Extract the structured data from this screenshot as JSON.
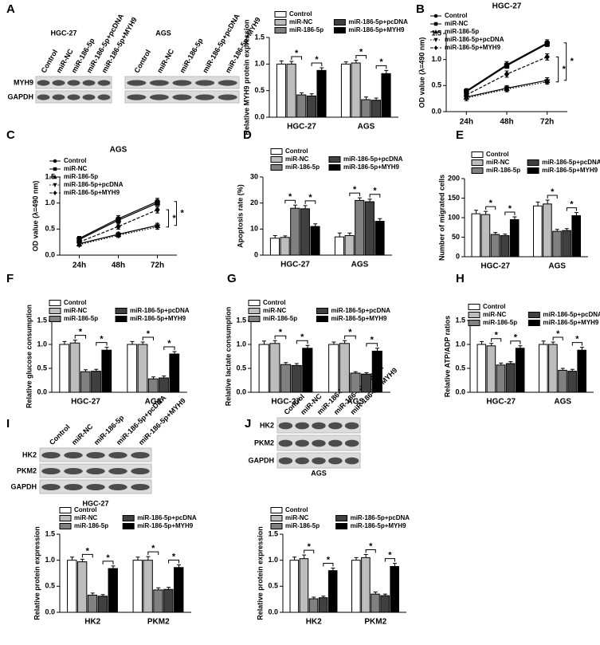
{
  "panel_labels": [
    "A",
    "B",
    "C",
    "D",
    "E",
    "F",
    "G",
    "H",
    "I",
    "J"
  ],
  "blots": [
    {
      "title": "HGC-27",
      "lanes": [
        "Control",
        "miR-NC",
        "miR-186-5p",
        "miR-186-5p+pcDNA",
        "miR-186-5p+MYH9"
      ],
      "rows": [
        "MYH9",
        "GAPDH"
      ]
    },
    {
      "title": "AGS",
      "lanes": [
        "Control",
        "miR-NC",
        "miR-186-5p",
        "miR-186-5p+pcDNA",
        "miR-186-5p+MYH9"
      ]
    },
    {
      "lanes": [
        "Control",
        "miR-NC",
        "miR-186-5p",
        "miR-186-5p+pcDNA",
        "miR-186-5p+MYH9"
      ],
      "rows": [
        "HK2",
        "PKM2",
        "GAPDH"
      ],
      "caption": "HGC-27"
    },
    {
      "lanes": [
        "Control",
        "miR-NC",
        "miR-186-5p",
        "miR-186-5p+pcDNA",
        "miR-186-5p+MYH9"
      ],
      "rows": [
        "HK2",
        "PKM2",
        "GAPDH"
      ],
      "caption": "AGS"
    }
  ],
  "chart_data": [
    {
      "type": "bar",
      "ylabel": "Relative MYH9 protein expression",
      "categories": [
        "HGC-27",
        "AGS"
      ],
      "significance_label": "*",
      "ylim": [
        0,
        1.5
      ],
      "yticks": [
        {
          "value": 0,
          "label": "0.0"
        },
        0.5,
        {
          "value": 1,
          "label": "1.0"
        },
        1.5
      ],
      "series": [
        {
          "name": "Control",
          "color": "#ffffff",
          "values": [
            1.0,
            1.0
          ],
          "errors": [
            0.06,
            0.04
          ]
        },
        {
          "name": "miR-NC",
          "color": "#bdbdbd",
          "values": [
            1.0,
            1.02
          ],
          "errors": [
            0.05,
            0.05
          ]
        },
        {
          "name": "miR-186-5p",
          "color": "#808080",
          "values": [
            0.42,
            0.33
          ],
          "errors": [
            0.04,
            0.05
          ]
        },
        {
          "name": "miR-186-5p+pcDNA",
          "color": "#404040",
          "values": [
            0.4,
            0.32
          ],
          "errors": [
            0.04,
            0.04
          ]
        },
        {
          "name": "miR-186-5p+MYH9",
          "color": "#000000",
          "values": [
            0.88,
            0.82
          ],
          "errors": [
            0.05,
            0.06
          ]
        }
      ]
    },
    {
      "type": "line",
      "title": "HGC-27",
      "ylabel": "OD value (λ=490 nm)",
      "categories": [
        "24h",
        "48h",
        "72h"
      ],
      "significance_label": "*",
      "ylim": [
        0,
        1.5
      ],
      "yticks": [
        {
          "value": 0,
          "label": "0.0"
        },
        0.5,
        {
          "value": 1,
          "label": "1.0"
        },
        1.5
      ],
      "series": [
        {
          "name": "Control",
          "color": "#000000",
          "marker": "circle",
          "dash": "solid",
          "values": [
            0.4,
            0.9,
            1.32
          ],
          "errors": [
            0.04,
            0.06,
            0.06
          ]
        },
        {
          "name": "miR-NC",
          "color": "#000000",
          "marker": "square",
          "dash": "solid",
          "values": [
            0.38,
            0.88,
            1.3
          ],
          "errors": [
            0.04,
            0.05,
            0.05
          ]
        },
        {
          "name": "miR-186-5p",
          "color": "#000000",
          "marker": "triangle",
          "dash": "solid",
          "values": [
            0.28,
            0.45,
            0.6
          ],
          "errors": [
            0.04,
            0.05,
            0.05
          ]
        },
        {
          "name": "miR-186-5p+pcDNA",
          "color": "#000000",
          "marker": "triangle-down",
          "dash": "dotted",
          "values": [
            0.26,
            0.43,
            0.57
          ],
          "errors": [
            0.05,
            0.05,
            0.04
          ]
        },
        {
          "name": "miR-186-5p+MYH9",
          "color": "#000000",
          "marker": "diamond",
          "dash": "dashed",
          "values": [
            0.32,
            0.72,
            1.05
          ],
          "errors": [
            0.05,
            0.06,
            0.06
          ]
        }
      ]
    },
    {
      "type": "line",
      "title": "AGS",
      "ylabel": "OD value (λ=490 nm)",
      "categories": [
        "24h",
        "48h",
        "72h"
      ],
      "significance_label": "*",
      "ylim": [
        0,
        1.5
      ],
      "yticks": [
        {
          "value": 0,
          "label": "0.0"
        },
        0.5,
        {
          "value": 1,
          "label": "1.0"
        },
        1.5
      ],
      "series": [
        {
          "name": "Control",
          "color": "#000000",
          "marker": "circle",
          "dash": "solid",
          "values": [
            0.32,
            0.7,
            1.03
          ],
          "errors": [
            0.04,
            0.06,
            0.06
          ]
        },
        {
          "name": "miR-NC",
          "color": "#000000",
          "marker": "square",
          "dash": "solid",
          "values": [
            0.3,
            0.67,
            1.0
          ],
          "errors": [
            0.04,
            0.05,
            0.05
          ]
        },
        {
          "name": "miR-186-5p",
          "color": "#000000",
          "marker": "triangle",
          "dash": "solid",
          "values": [
            0.22,
            0.4,
            0.57
          ],
          "errors": [
            0.03,
            0.04,
            0.04
          ]
        },
        {
          "name": "miR-186-5p+pcDNA",
          "color": "#000000",
          "marker": "triangle-down",
          "dash": "dotted",
          "values": [
            0.2,
            0.38,
            0.54
          ],
          "errors": [
            0.03,
            0.04,
            0.04
          ]
        },
        {
          "name": "miR-186-5p+MYH9",
          "color": "#000000",
          "marker": "diamond",
          "dash": "dashed",
          "values": [
            0.25,
            0.55,
            0.87
          ],
          "errors": [
            0.04,
            0.05,
            0.06
          ]
        }
      ]
    },
    {
      "type": "bar",
      "ylabel": "Apoptosis rate (%)",
      "categories": [
        "HGC-27",
        "AGS"
      ],
      "significance_label": "*",
      "ylim": [
        0,
        30
      ],
      "yticks": [
        0,
        10,
        20,
        30
      ],
      "series": [
        {
          "name": "Control",
          "color": "#ffffff",
          "values": [
            6.5,
            7
          ],
          "errors": [
            1,
            1.5
          ]
        },
        {
          "name": "miR-NC",
          "color": "#bdbdbd",
          "values": [
            6.8,
            7.5
          ],
          "errors": [
            0.6,
            1
          ]
        },
        {
          "name": "miR-186-5p",
          "color": "#808080",
          "values": [
            18,
            21
          ],
          "errors": [
            1.2,
            1
          ]
        },
        {
          "name": "miR-186-5p+pcDNA",
          "color": "#404040",
          "values": [
            17.8,
            20.5
          ],
          "errors": [
            1.2,
            1
          ]
        },
        {
          "name": "miR-186-5p+MYH9",
          "color": "#000000",
          "values": [
            11,
            13
          ],
          "errors": [
            1,
            1
          ]
        }
      ]
    },
    {
      "type": "bar",
      "ylabel": "Number of migrated cells",
      "categories": [
        "HGC-27",
        "AGS"
      ],
      "significance_label": "*",
      "ylim": [
        0,
        200
      ],
      "yticks": [
        0,
        50,
        100,
        150,
        200
      ],
      "series": [
        {
          "name": "Control",
          "color": "#ffffff",
          "values": [
            110,
            130
          ],
          "errors": [
            9,
            10
          ]
        },
        {
          "name": "miR-NC",
          "color": "#bdbdbd",
          "values": [
            108,
            135
          ],
          "errors": [
            8,
            10
          ]
        },
        {
          "name": "miR-186-5p",
          "color": "#808080",
          "values": [
            57,
            65
          ],
          "errors": [
            5,
            5
          ]
        },
        {
          "name": "miR-186-5p+pcDNA",
          "color": "#404040",
          "values": [
            54,
            67
          ],
          "errors": [
            4,
            5
          ]
        },
        {
          "name": "miR-186-5p+MYH9",
          "color": "#000000",
          "values": [
            95,
            105
          ],
          "errors": [
            7,
            8
          ]
        }
      ]
    },
    {
      "type": "bar",
      "ylabel": "Relative glucose consumption",
      "categories": [
        "HGC-27",
        "AGS"
      ],
      "significance_label": "*",
      "ylim": [
        0,
        1.5
      ],
      "yticks": [
        {
          "value": 0,
          "label": "0.0"
        },
        0.5,
        {
          "value": 1,
          "label": "1.0"
        },
        1.5
      ],
      "series": [
        {
          "name": "Control",
          "color": "#ffffff",
          "values": [
            1.0,
            1.0
          ],
          "errors": [
            0.06,
            0.06
          ]
        },
        {
          "name": "miR-NC",
          "color": "#bdbdbd",
          "values": [
            1.03,
            1.0
          ],
          "errors": [
            0.06,
            0.05
          ]
        },
        {
          "name": "miR-186-5p",
          "color": "#808080",
          "values": [
            0.43,
            0.28
          ],
          "errors": [
            0.04,
            0.04
          ]
        },
        {
          "name": "miR-186-5p+pcDNA",
          "color": "#404040",
          "values": [
            0.44,
            0.3
          ],
          "errors": [
            0.04,
            0.04
          ]
        },
        {
          "name": "miR-186-5p+MYH9",
          "color": "#000000",
          "values": [
            0.88,
            0.8
          ],
          "errors": [
            0.06,
            0.05
          ]
        }
      ]
    },
    {
      "type": "bar",
      "ylabel": "Relative lactate consumption",
      "categories": [
        "HGC-27",
        "AGS"
      ],
      "significance_label": "*",
      "ylim": [
        0,
        1.5
      ],
      "yticks": [
        {
          "value": 0,
          "label": "0.0"
        },
        0.5,
        {
          "value": 1,
          "label": "1.0"
        },
        1.5
      ],
      "series": [
        {
          "name": "Control",
          "color": "#ffffff",
          "values": [
            1.0,
            1.0
          ],
          "errors": [
            0.07,
            0.05
          ]
        },
        {
          "name": "miR-NC",
          "color": "#bdbdbd",
          "values": [
            1.02,
            1.02
          ],
          "errors": [
            0.06,
            0.06
          ]
        },
        {
          "name": "miR-186-5p",
          "color": "#808080",
          "values": [
            0.58,
            0.4
          ],
          "errors": [
            0.04,
            0.03
          ]
        },
        {
          "name": "miR-186-5p+pcDNA",
          "color": "#404040",
          "values": [
            0.56,
            0.38
          ],
          "errors": [
            0.04,
            0.03
          ]
        },
        {
          "name": "miR-186-5p+MYH9",
          "color": "#000000",
          "values": [
            0.92,
            0.86
          ],
          "errors": [
            0.06,
            0.06
          ]
        }
      ]
    },
    {
      "type": "bar",
      "ylabel": "Relative ATP/ADP ratios",
      "categories": [
        "HGC-27",
        "AGS"
      ],
      "significance_label": "*",
      "ylim": [
        0,
        1.5
      ],
      "yticks": [
        {
          "value": 0,
          "label": "0.0"
        },
        0.5,
        {
          "value": 1,
          "label": "1.0"
        },
        1.5
      ],
      "series": [
        {
          "name": "Control",
          "color": "#ffffff",
          "values": [
            1.0,
            1.0
          ],
          "errors": [
            0.06,
            0.07
          ]
        },
        {
          "name": "miR-NC",
          "color": "#bdbdbd",
          "values": [
            0.97,
            1.0
          ],
          "errors": [
            0.05,
            0.05
          ]
        },
        {
          "name": "miR-186-5p",
          "color": "#808080",
          "values": [
            0.57,
            0.46
          ],
          "errors": [
            0.04,
            0.04
          ]
        },
        {
          "name": "miR-186-5p+pcDNA",
          "color": "#404040",
          "values": [
            0.6,
            0.44
          ],
          "errors": [
            0.04,
            0.04
          ]
        },
        {
          "name": "miR-186-5p+MYH9",
          "color": "#000000",
          "values": [
            0.92,
            0.88
          ],
          "errors": [
            0.05,
            0.06
          ]
        }
      ]
    },
    {
      "type": "bar",
      "ylabel": "Relative protein expression",
      "categories": [
        "HK2",
        "PKM2"
      ],
      "significance_label": "*",
      "ylim": [
        0,
        1.5
      ],
      "yticks": [
        {
          "value": 0,
          "label": "0.0"
        },
        0.5,
        {
          "value": 1,
          "label": "1.0"
        },
        1.5
      ],
      "series": [
        {
          "name": "Control",
          "color": "#ffffff",
          "values": [
            1.0,
            1.0
          ],
          "errors": [
            0.06,
            0.06
          ]
        },
        {
          "name": "miR-NC",
          "color": "#bdbdbd",
          "values": [
            0.97,
            1.0
          ],
          "errors": [
            0.05,
            0.07
          ]
        },
        {
          "name": "miR-186-5p",
          "color": "#808080",
          "values": [
            0.33,
            0.43
          ],
          "errors": [
            0.04,
            0.04
          ]
        },
        {
          "name": "miR-186-5p+pcDNA",
          "color": "#404040",
          "values": [
            0.31,
            0.44
          ],
          "errors": [
            0.03,
            0.04
          ]
        },
        {
          "name": "miR-186-5p+MYH9",
          "color": "#000000",
          "values": [
            0.84,
            0.86
          ],
          "errors": [
            0.05,
            0.05
          ]
        }
      ]
    },
    {
      "type": "bar",
      "ylabel": "Relative protein expression",
      "categories": [
        "HK2",
        "PKM2"
      ],
      "significance_label": "*",
      "ylim": [
        0,
        1.5
      ],
      "yticks": [
        {
          "value": 0,
          "label": "0.0"
        },
        0.5,
        {
          "value": 1,
          "label": "1.0"
        },
        1.5
      ],
      "series": [
        {
          "name": "Control",
          "color": "#ffffff",
          "values": [
            1.0,
            1.0
          ],
          "errors": [
            0.06,
            0.05
          ]
        },
        {
          "name": "miR-NC",
          "color": "#bdbdbd",
          "values": [
            1.03,
            1.05
          ],
          "errors": [
            0.07,
            0.06
          ]
        },
        {
          "name": "miR-186-5p",
          "color": "#808080",
          "values": [
            0.26,
            0.35
          ],
          "errors": [
            0.03,
            0.04
          ]
        },
        {
          "name": "miR-186-5p+pcDNA",
          "color": "#404040",
          "values": [
            0.28,
            0.32
          ],
          "errors": [
            0.03,
            0.03
          ]
        },
        {
          "name": "miR-186-5p+MYH9",
          "color": "#000000",
          "values": [
            0.8,
            0.88
          ],
          "errors": [
            0.05,
            0.06
          ]
        }
      ]
    }
  ]
}
